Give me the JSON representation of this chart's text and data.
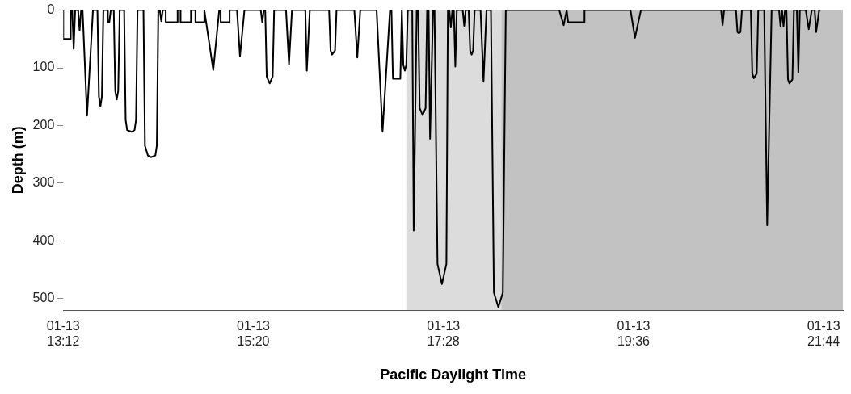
{
  "chart_data": {
    "type": "line",
    "xlabel": "Pacific Daylight Time",
    "ylabel": "Depth (m)",
    "xlim": [
      "--01-13T13:12",
      "--01-13T21:57"
    ],
    "ylim": [
      520,
      0
    ],
    "xticks": [
      {
        "value": "--01-13T13:12",
        "label": "01-13\n13:12"
      },
      {
        "value": "--01-13T15:20",
        "label": "01-13\n15:20"
      },
      {
        "value": "--01-13T17:28",
        "label": "01-13\n17:28"
      },
      {
        "value": "--01-13T19:36",
        "label": "01-13\n19:36"
      },
      {
        "value": "--01-13T21:44",
        "label": "01-13\n21:44"
      }
    ],
    "yticks": [
      0,
      100,
      200,
      300,
      400,
      500
    ],
    "grid": false,
    "legend": false,
    "marker": "none",
    "line_style": "solid",
    "bands": [
      {
        "axis": "x",
        "from": "--01-13T17:03",
        "to": "--01-13T18:07",
        "color": "#dcdcdc"
      },
      {
        "axis": "x",
        "from": "--01-13T18:07",
        "to": "--01-13T21:57",
        "color": "#c2c2c2"
      }
    ],
    "series": [
      {
        "color": "#000000",
        "x": [
          "--01-13T13:12",
          "--01-13T13:12",
          "--01-13T13:17",
          "--01-13T13:17",
          "--01-13T13:18",
          "--01-13T13:19",
          "--01-13T13:20",
          "--01-13T13:22",
          "--01-13T13:23",
          "--01-13T13:24",
          "--01-13T13:25",
          "--01-13T13:28",
          "--01-13T13:32",
          "--01-13T13:35",
          "--01-13T13:36",
          "--01-13T13:37",
          "--01-13T13:38",
          "--01-13T13:39",
          "--01-13T13:42",
          "--01-13T13:42",
          "--01-13T13:43",
          "--01-13T13:44",
          "--01-13T13:46",
          "--01-13T13:47",
          "--01-13T13:48",
          "--01-13T13:49",
          "--01-13T13:50",
          "--01-13T13:53",
          "--01-13T13:54",
          "--01-13T13:55",
          "--01-13T13:58",
          "--01-13T14:00",
          "--01-13T14:01",
          "--01-13T14:02",
          "--01-13T14:06",
          "--01-13T14:07",
          "--01-13T14:09",
          "--01-13T14:11",
          "--01-13T14:14",
          "--01-13T14:15",
          "--01-13T14:16",
          "--01-13T14:17",
          "--01-13T14:18",
          "--01-13T14:19",
          "--01-13T14:21",
          "--01-13T14:21",
          "--01-13T14:29",
          "--01-13T14:29",
          "--01-13T14:31",
          "--01-13T14:31",
          "--01-13T14:38",
          "--01-13T14:38",
          "--01-13T14:41",
          "--01-13T14:41",
          "--01-13T14:47",
          "--01-13T14:47",
          "--01-13T14:53",
          "--01-13T14:57",
          "--01-13T14:58",
          "--01-13T14:58",
          "--01-13T15:04",
          "--01-13T15:04",
          "--01-13T15:09",
          "--01-13T15:11",
          "--01-13T15:14",
          "--01-13T15:25",
          "--01-13T15:26",
          "--01-13T15:27",
          "--01-13T15:28",
          "--01-13T15:29",
          "--01-13T15:31",
          "--01-13T15:33",
          "--01-13T15:34",
          "--01-13T15:42",
          "--01-13T15:44",
          "--01-13T15:46",
          "--01-13T15:55",
          "--01-13T15:56",
          "--01-13T15:58",
          "--01-13T16:11",
          "--01-13T16:12",
          "--01-13T16:13",
          "--01-13T16:15",
          "--01-13T16:16",
          "--01-13T16:28",
          "--01-13T16:30",
          "--01-13T16:32",
          "--01-13T16:43",
          "--01-13T16:47",
          "--01-13T16:52",
          "--01-13T16:53",
          "--01-13T16:54",
          "--01-13T16:59",
          "--01-13T17:00",
          "--01-13T17:01",
          "--01-13T17:02",
          "--01-13T17:03",
          "--01-13T17:04",
          "--01-13T17:07",
          "--01-13T17:08",
          "--01-13T17:10",
          "--01-13T17:11",
          "--01-13T17:12",
          "--01-13T17:14",
          "--01-13T17:16",
          "--01-13T17:17",
          "--01-13T17:18",
          "--01-13T17:19",
          "--01-13T17:21",
          "--01-13T17:22",
          "--01-13T17:24",
          "--01-13T17:27",
          "--01-13T17:30",
          "--01-13T17:31",
          "--01-13T17:32",
          "--01-13T17:33",
          "--01-13T17:34",
          "--01-13T17:35",
          "--01-13T17:36",
          "--01-13T17:37",
          "--01-13T17:41",
          "--01-13T17:42",
          "--01-13T17:43",
          "--01-13T17:45",
          "--01-13T17:46",
          "--01-13T17:47",
          "--01-13T17:48",
          "--01-13T17:49",
          "--01-13T17:53",
          "--01-13T17:55",
          "--01-13T17:57",
          "--01-13T18:00",
          "--01-13T18:02",
          "--01-13T18:05",
          "--01-13T18:08",
          "--01-13T18:10",
          "--01-13T18:46",
          "--01-13T18:49",
          "--01-13T18:51",
          "--01-13T18:52",
          "--01-13T19:03",
          "--01-13T19:03",
          "--01-13T19:34",
          "--01-13T19:37",
          "--01-13T19:41",
          "--01-13T20:35",
          "--01-13T20:36",
          "--01-13T20:37",
          "--01-13T20:45",
          "--01-13T20:46",
          "--01-13T20:47",
          "--01-13T20:48",
          "--01-13T20:49",
          "--01-13T20:55",
          "--01-13T20:56",
          "--01-13T20:57",
          "--01-13T20:59",
          "--01-13T21:00",
          "--01-13T21:04",
          "--01-13T21:06",
          "--01-13T21:09",
          "--01-13T21:14",
          "--01-13T21:15",
          "--01-13T21:16",
          "--01-13T21:17",
          "--01-13T21:18",
          "--01-13T21:19",
          "--01-13T21:20",
          "--01-13T21:21",
          "--01-13T21:23",
          "--01-13T21:24",
          "--01-13T21:26",
          "--01-13T21:27",
          "--01-13T21:28",
          "--01-13T21:32",
          "--01-13T21:34",
          "--01-13T21:36",
          "--01-13T21:38",
          "--01-13T21:39",
          "--01-13T21:41",
          "--01-13T21:42"
        ],
        "values": [
          0,
          50,
          50,
          0,
          0,
          67,
          0,
          0,
          35,
          0,
          0,
          183,
          0,
          0,
          150,
          167,
          150,
          0,
          0,
          21,
          21,
          0,
          0,
          140,
          155,
          140,
          0,
          0,
          190,
          208,
          211,
          208,
          190,
          0,
          0,
          235,
          252,
          255,
          252,
          235,
          0,
          0,
          19,
          0,
          0,
          21,
          21,
          0,
          0,
          21,
          21,
          0,
          0,
          21,
          21,
          0,
          104,
          0,
          0,
          21,
          21,
          0,
          0,
          80,
          0,
          0,
          21,
          0,
          0,
          115,
          127,
          115,
          0,
          0,
          94,
          0,
          0,
          105,
          0,
          0,
          70,
          77,
          70,
          0,
          0,
          82,
          0,
          0,
          211,
          0,
          0,
          119,
          119,
          0,
          95,
          105,
          95,
          0,
          0,
          382,
          0,
          0,
          170,
          182,
          170,
          0,
          0,
          223,
          0,
          0,
          440,
          475,
          440,
          0,
          0,
          30,
          0,
          0,
          98,
          0,
          0,
          27,
          0,
          0,
          70,
          77,
          70,
          0,
          0,
          124,
          0,
          0,
          490,
          515,
          490,
          0,
          0,
          26,
          0,
          21,
          21,
          0,
          0,
          48,
          0,
          0,
          26,
          0,
          0,
          38,
          40,
          38,
          0,
          0,
          110,
          118,
          110,
          0,
          0,
          373,
          0,
          0,
          28,
          0,
          28,
          0,
          0,
          120,
          127,
          120,
          0,
          0,
          108,
          0,
          0,
          33,
          0,
          0,
          38,
          0,
          0
        ]
      }
    ]
  }
}
